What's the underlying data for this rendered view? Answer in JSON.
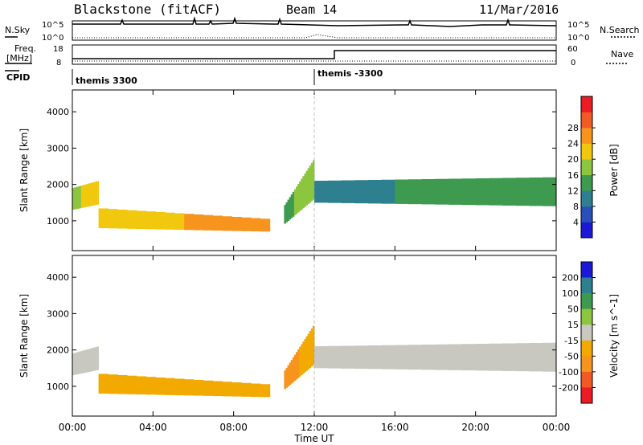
{
  "header": {
    "station": "Blackstone (fitACF)",
    "beam": "Beam 14",
    "date": "11/Mar/2016"
  },
  "panels": {
    "nsky": {
      "left_label": "N.Sky",
      "right_label": "N.Search",
      "left_ticks": [
        "10^5",
        "10^0"
      ],
      "right_ticks": [
        "10^5",
        "10^0"
      ]
    },
    "freq": {
      "left_label": "Freq.",
      "left_unit": "[MHz]",
      "right_label": "Nave",
      "left_ticks": [
        "18",
        "8"
      ],
      "right_ticks": [
        "60",
        "0"
      ],
      "cpid_label": "CPID"
    },
    "cpid": {
      "segments": [
        {
          "label": "themis 3300",
          "start_hour": 0
        },
        {
          "label": "themis -3300",
          "start_hour": 12
        }
      ]
    }
  },
  "chart_data": [
    {
      "type": "heatmap",
      "name": "power",
      "ylabel": "Slant Range [km]",
      "x_range_hours": [
        0,
        24
      ],
      "ylim": [
        180,
        4600
      ],
      "yticks": [
        1000,
        2000,
        3000,
        4000
      ],
      "colorbar": {
        "label": "Power [dB]",
        "ticks": [
          "4",
          "8",
          "12",
          "16",
          "20",
          "24",
          "28"
        ],
        "colors": [
          "#1a1ad6",
          "#2a4fb8",
          "#2e7f8f",
          "#3e9a4e",
          "#8cc63f",
          "#f2c80f",
          "#f7941d",
          "#f15a24",
          "#ed1c24"
        ]
      },
      "bands": [
        {
          "t": [
            0,
            1.3
          ],
          "r0": [
            1300,
            1450
          ],
          "r1": [
            1900,
            2100
          ],
          "values": [
            18,
            24
          ]
        },
        {
          "t": [
            1.3,
            9.8
          ],
          "r0": [
            800,
            700
          ],
          "r1": [
            1350,
            1050
          ],
          "values": [
            22,
            26
          ]
        },
        {
          "t": [
            10.5,
            12.0
          ],
          "r0": [
            900,
            1600
          ],
          "r1": [
            1400,
            2700
          ],
          "values": [
            14,
            20
          ]
        },
        {
          "t": [
            12.0,
            24
          ],
          "r0": [
            1500,
            1400
          ],
          "r1": [
            2100,
            2200
          ],
          "values": [
            10,
            16
          ]
        }
      ]
    },
    {
      "type": "heatmap",
      "name": "velocity",
      "ylabel": "Slant Range [km]",
      "xlabel": "Time UT",
      "x_range_hours": [
        0,
        24
      ],
      "xticks": [
        "00:00",
        "04:00",
        "08:00",
        "12:00",
        "16:00",
        "20:00",
        "00:00"
      ],
      "ylim": [
        180,
        4600
      ],
      "yticks": [
        1000,
        2000,
        3000,
        4000
      ],
      "colorbar": {
        "label": "Velocity [m s^-1]",
        "ticks": [
          "200",
          "100",
          "50",
          "15",
          "-15",
          "-50",
          "-100",
          "-200"
        ],
        "colors": [
          "#1a1ad6",
          "#2e7f8f",
          "#3e9a4e",
          "#8cc63f",
          "#c8c8c0",
          "#f2a900",
          "#f7941d",
          "#f15a24",
          "#ed1c24"
        ]
      },
      "bands": [
        {
          "t": [
            0,
            1.3
          ],
          "r0": [
            1300,
            1450
          ],
          "r1": [
            1900,
            2100
          ],
          "values": [
            -15,
            -15
          ]
        },
        {
          "t": [
            1.3,
            9.8
          ],
          "r0": [
            800,
            700
          ],
          "r1": [
            1350,
            1050
          ],
          "values": [
            -50,
            -30
          ]
        },
        {
          "t": [
            10.5,
            12.0
          ],
          "r0": [
            900,
            1600
          ],
          "r1": [
            1400,
            2700
          ],
          "values": [
            -60,
            -40
          ]
        },
        {
          "t": [
            12.0,
            24
          ],
          "r0": [
            1500,
            1400
          ],
          "r1": [
            2100,
            2200
          ],
          "values": [
            0,
            0
          ]
        }
      ]
    }
  ]
}
